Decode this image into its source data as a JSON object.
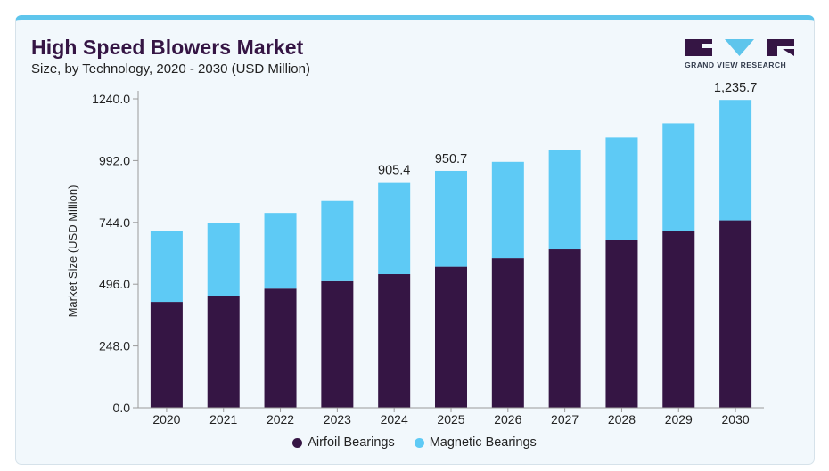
{
  "header": {
    "title": "High Speed Blowers Market",
    "subtitle": "Size, by Technology, 2020 - 2030 (USD Million)"
  },
  "brand": {
    "name": "GRAND VIEW RESEARCH",
    "logo_color": "#351544"
  },
  "colors": {
    "accent": "#5ec5ec",
    "airfoil": "#351544",
    "magnetic": "#5ecaf5"
  },
  "chart_data": {
    "type": "bar",
    "stacked": true,
    "categories": [
      "2020",
      "2021",
      "2022",
      "2023",
      "2024",
      "2025",
      "2026",
      "2027",
      "2028",
      "2029",
      "2030"
    ],
    "series": [
      {
        "name": "Airfoil Bearings",
        "color": "#351544",
        "values": [
          425,
          450,
          478,
          508,
          536,
          566,
          600,
          636,
          672,
          711,
          752
        ]
      },
      {
        "name": "Magnetic Bearings",
        "color": "#5ecaf5",
        "values": [
          283,
          292,
          304,
          322,
          369.4,
          384.7,
          387,
          397,
          413,
          431,
          483.7
        ]
      }
    ],
    "totals_labels": [
      {
        "category": "2024",
        "text": "905.4"
      },
      {
        "category": "2025",
        "text": "950.7"
      },
      {
        "category": "2030",
        "text": "1,235.7"
      }
    ],
    "ylabel": "Market Size (USD Million)",
    "xlabel": "",
    "ylim": [
      0,
      1240
    ],
    "yticks": [
      "0.0",
      "248.0",
      "496.0",
      "744.0",
      "992.0",
      "1240.0"
    ],
    "ytick_values": [
      0,
      248,
      496,
      744,
      992,
      1240
    ],
    "grid": false,
    "legend_position": "bottom"
  }
}
